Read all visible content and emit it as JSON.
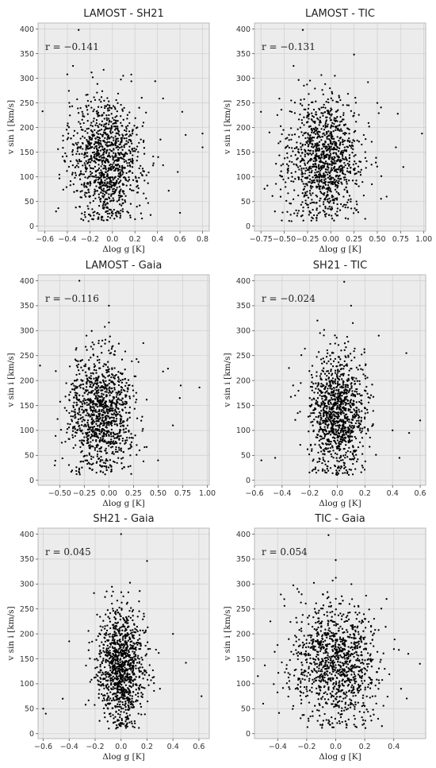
{
  "chart_data": [
    {
      "type": "scatter",
      "title": "LAMOST - SH21",
      "xlabel": "Δlog g [K]",
      "ylabel": "v sin i [km/s]",
      "annotation": "r = −0.141",
      "xlim": [
        -0.66,
        0.86
      ],
      "ylim": [
        -10,
        412
      ],
      "xticks": [
        -0.6,
        -0.4,
        -0.2,
        0.0,
        0.2,
        0.4,
        0.6,
        0.8
      ],
      "xtick_labels": [
        "−0.6",
        "−0.4",
        "−0.2",
        "0.0",
        "0.2",
        "0.4",
        "0.6",
        "0.8"
      ],
      "yticks": [
        0,
        50,
        100,
        150,
        200,
        250,
        300,
        350,
        400
      ],
      "ytick_labels": [
        "0",
        "50",
        "100",
        "150",
        "200",
        "250",
        "300",
        "350",
        "400"
      ],
      "grid": true,
      "cloud": {
        "n": 1100,
        "x_center": -0.06,
        "x_sd": 0.16,
        "y_center": 135,
        "y_sd": 62
      },
      "points": [
        [
          -0.3,
          398
        ],
        [
          -0.35,
          325
        ],
        [
          -0.4,
          308
        ],
        [
          -0.62,
          233
        ],
        [
          0.8,
          188
        ],
        [
          0.8,
          160
        ],
        [
          0.62,
          232
        ],
        [
          0.65,
          185
        ],
        [
          0.45,
          259
        ],
        [
          0.58,
          110
        ],
        [
          0.5,
          72
        ],
        [
          -0.5,
          30
        ],
        [
          0.38,
          294
        ],
        [
          0.6,
          27
        ]
      ]
    },
    {
      "type": "scatter",
      "title": "LAMOST - TIC",
      "xlabel": "Δlog g [K]",
      "ylabel": "v sin i [km/s]",
      "annotation": "r = −0.131",
      "xlim": [
        -0.82,
        1.02
      ],
      "ylim": [
        -10,
        412
      ],
      "xticks": [
        -0.75,
        -0.5,
        -0.25,
        0.0,
        0.25,
        0.5,
        0.75,
        1.0
      ],
      "xtick_labels": [
        "−0.75",
        "−0.50",
        "−0.25",
        "0.00",
        "0.25",
        "0.50",
        "0.75",
        "1.00"
      ],
      "yticks": [
        0,
        50,
        100,
        150,
        200,
        250,
        300,
        350,
        400
      ],
      "ytick_labels": [
        "0",
        "50",
        "100",
        "150",
        "200",
        "250",
        "300",
        "350",
        "400"
      ],
      "grid": true,
      "cloud": {
        "n": 1100,
        "x_center": -0.07,
        "x_sd": 0.2,
        "y_center": 135,
        "y_sd": 62
      },
      "points": [
        [
          -0.3,
          398
        ],
        [
          -0.4,
          325
        ],
        [
          -0.75,
          232
        ],
        [
          0.98,
          188
        ],
        [
          0.72,
          228
        ],
        [
          0.7,
          160
        ],
        [
          0.78,
          120
        ],
        [
          0.5,
          250
        ],
        [
          0.4,
          292
        ],
        [
          0.6,
          60
        ],
        [
          -0.6,
          30
        ],
        [
          0.25,
          348
        ]
      ]
    },
    {
      "type": "scatter",
      "title": "LAMOST - Gaia",
      "xlabel": "Δlog g [K]",
      "ylabel": "v sin i [km/s]",
      "annotation": "r = −0.116",
      "xlim": [
        -0.72,
        1.02
      ],
      "ylim": [
        -10,
        412
      ],
      "xticks": [
        -0.5,
        -0.25,
        0.0,
        0.25,
        0.5,
        0.75,
        1.0
      ],
      "xtick_labels": [
        "−0.50",
        "−0.25",
        "0.00",
        "0.25",
        "0.50",
        "0.75",
        "1.00"
      ],
      "yticks": [
        0,
        50,
        100,
        150,
        200,
        250,
        300,
        350,
        400
      ],
      "ytick_labels": [
        "0",
        "50",
        "100",
        "150",
        "200",
        "250",
        "300",
        "350",
        "400"
      ],
      "grid": true,
      "cloud": {
        "n": 1100,
        "x_center": -0.08,
        "x_sd": 0.17,
        "y_center": 135,
        "y_sd": 62
      },
      "points": [
        [
          -0.3,
          400
        ],
        [
          0.0,
          350
        ],
        [
          -0.7,
          230
        ],
        [
          0.92,
          186
        ],
        [
          0.73,
          190
        ],
        [
          0.72,
          165
        ],
        [
          0.6,
          224
        ],
        [
          0.55,
          218
        ],
        [
          0.65,
          110
        ],
        [
          0.5,
          40
        ],
        [
          0.35,
          275
        ],
        [
          -0.55,
          30
        ]
      ]
    },
    {
      "type": "scatter",
      "title": "SH21 - TIC",
      "xlabel": "Δlog g [K]",
      "ylabel": "v sin i [km/s]",
      "annotation": "r = −0.024",
      "xlim": [
        -0.6,
        0.64
      ],
      "ylim": [
        -10,
        412
      ],
      "xticks": [
        -0.6,
        -0.4,
        -0.2,
        0.0,
        0.2,
        0.4,
        0.6
      ],
      "xtick_labels": [
        "−0.6",
        "−0.4",
        "−0.2",
        "0.0",
        "0.2",
        "0.4",
        "0.6"
      ],
      "yticks": [
        0,
        50,
        100,
        150,
        200,
        250,
        300,
        350,
        400
      ],
      "ytick_labels": [
        "0",
        "50",
        "100",
        "150",
        "200",
        "250",
        "300",
        "350",
        "400"
      ],
      "grid": true,
      "cloud": {
        "n": 1100,
        "x_center": 0.0,
        "x_sd": 0.1,
        "y_center": 135,
        "y_sd": 60
      },
      "points": [
        [
          0.05,
          398
        ],
        [
          0.1,
          350
        ],
        [
          -0.55,
          40
        ],
        [
          -0.45,
          45
        ],
        [
          0.6,
          120
        ],
        [
          0.52,
          95
        ],
        [
          0.5,
          255
        ],
        [
          0.4,
          100
        ],
        [
          0.45,
          45
        ],
        [
          -0.35,
          225
        ],
        [
          0.3,
          290
        ]
      ]
    },
    {
      "type": "scatter",
      "title": "SH21 - Gaia",
      "xlabel": "Δlog g [K]",
      "ylabel": "v sin i [km/s]",
      "annotation": "r = 0.045",
      "xlim": [
        -0.64,
        0.68
      ],
      "ylim": [
        -10,
        412
      ],
      "xticks": [
        -0.6,
        -0.4,
        -0.2,
        0.0,
        0.2,
        0.4,
        0.6
      ],
      "xtick_labels": [
        "−0.6",
        "−0.4",
        "−0.2",
        "0.0",
        "0.2",
        "0.4",
        "0.6"
      ],
      "yticks": [
        0,
        50,
        100,
        150,
        200,
        250,
        300,
        350,
        400
      ],
      "ytick_labels": [
        "0",
        "50",
        "100",
        "150",
        "200",
        "250",
        "300",
        "350",
        "400"
      ],
      "grid": true,
      "cloud": {
        "n": 1100,
        "x_center": 0.0,
        "x_sd": 0.09,
        "y_center": 135,
        "y_sd": 58
      },
      "points": [
        [
          0.0,
          400
        ],
        [
          0.2,
          346
        ],
        [
          -0.6,
          50
        ],
        [
          -0.58,
          40
        ],
        [
          0.62,
          75
        ],
        [
          0.5,
          142
        ],
        [
          0.4,
          200
        ],
        [
          -0.45,
          70
        ],
        [
          -0.4,
          185
        ],
        [
          0.3,
          90
        ]
      ]
    },
    {
      "type": "scatter",
      "title": "TIC - Gaia",
      "xlabel": "Δlog g [K]",
      "ylabel": "v sin i [km/s]",
      "annotation": "r = 0.054",
      "xlim": [
        -0.56,
        0.62
      ],
      "ylim": [
        -10,
        412
      ],
      "xticks": [
        -0.4,
        -0.2,
        0.0,
        0.2,
        0.4
      ],
      "xtick_labels": [
        "−0.4",
        "−0.2",
        "0.0",
        "0.2",
        "0.4"
      ],
      "yticks": [
        0,
        50,
        100,
        150,
        200,
        250,
        300,
        350,
        400
      ],
      "ytick_labels": [
        "0",
        "50",
        "100",
        "150",
        "200",
        "250",
        "300",
        "350",
        "400"
      ],
      "grid": true,
      "cloud": {
        "n": 1100,
        "x_center": 0.0,
        "x_sd": 0.15,
        "y_center": 140,
        "y_sd": 62
      },
      "points": [
        [
          -0.05,
          398
        ],
        [
          0.0,
          348
        ],
        [
          0.58,
          140
        ],
        [
          -0.5,
          60
        ],
        [
          0.5,
          160
        ],
        [
          0.45,
          90
        ],
        [
          -0.45,
          225
        ],
        [
          0.35,
          270
        ]
      ]
    }
  ]
}
